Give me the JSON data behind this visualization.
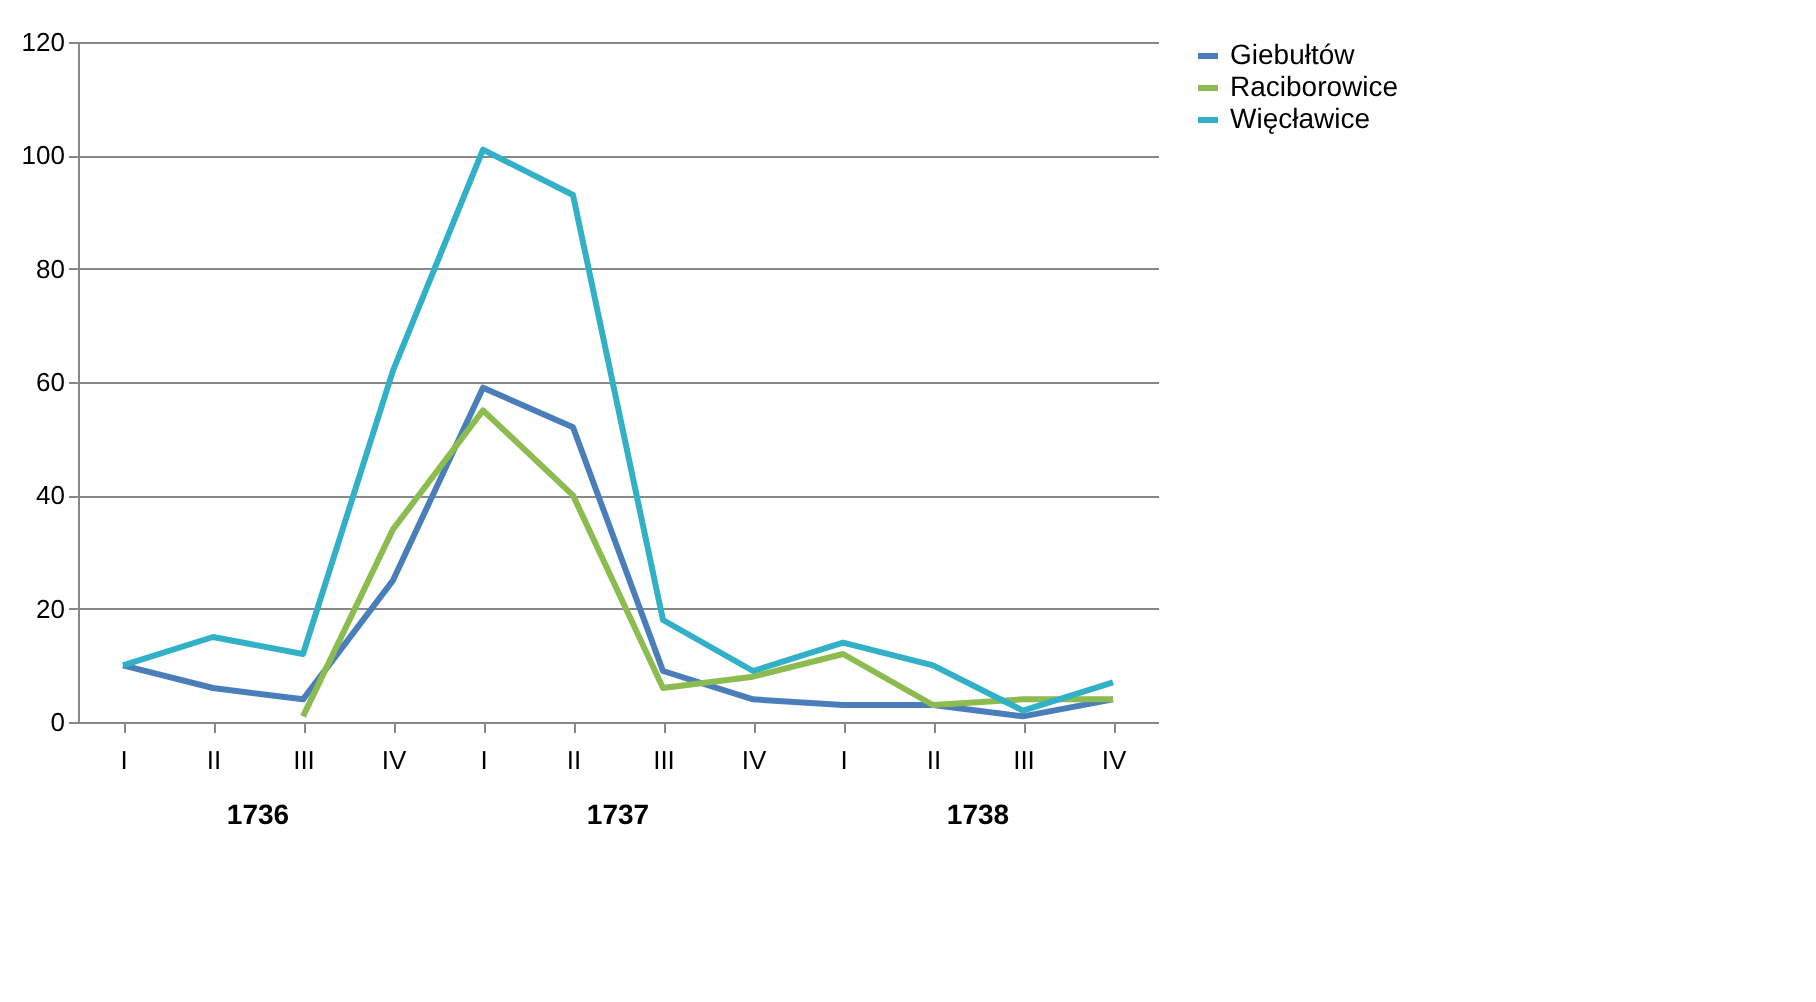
{
  "chart_data": {
    "type": "line",
    "categories": [
      "I",
      "II",
      "III",
      "IV",
      "I",
      "II",
      "III",
      "IV",
      "I",
      "II",
      "III",
      "IV"
    ],
    "series": [
      {
        "name": "Giebułtów",
        "color": "#4a7ebb",
        "values": [
          10,
          6,
          4,
          25,
          59,
          52,
          9,
          4,
          3,
          3,
          1,
          4
        ]
      },
      {
        "name": "Raciborowice",
        "color": "#8cbb4f",
        "values": [
          null,
          null,
          1,
          34,
          55,
          40,
          6,
          8,
          12,
          3,
          4,
          4
        ]
      },
      {
        "name": "Więcławice",
        "color": "#31b0c7",
        "values": [
          10,
          15,
          12,
          62,
          101,
          93,
          18,
          9,
          14,
          10,
          2,
          7
        ]
      }
    ],
    "ylim": [
      0,
      120
    ],
    "yticks": [
      0,
      20,
      40,
      60,
      80,
      100,
      120
    ],
    "grid": "y",
    "legend": "right",
    "marker": "none",
    "line_style": "solid",
    "annotations": [
      "1736",
      "1737",
      "1738"
    ]
  }
}
